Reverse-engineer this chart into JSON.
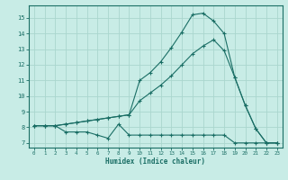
{
  "xlabel": "Humidex (Indice chaleur)",
  "xlim": [
    -0.5,
    23.5
  ],
  "ylim": [
    6.7,
    15.8
  ],
  "yticks": [
    7,
    8,
    9,
    10,
    11,
    12,
    13,
    14,
    15
  ],
  "xticks": [
    0,
    1,
    2,
    3,
    4,
    5,
    6,
    7,
    8,
    9,
    10,
    11,
    12,
    13,
    14,
    15,
    16,
    17,
    18,
    19,
    20,
    21,
    22,
    23
  ],
  "bg_color": "#c8ece6",
  "grid_color": "#aad6ce",
  "line_color": "#1a6e65",
  "line1_x": [
    0,
    1,
    2,
    3,
    4,
    5,
    6,
    7,
    8,
    9,
    10,
    11,
    12,
    13,
    14,
    15,
    16,
    17,
    18,
    19,
    20,
    21,
    22,
    23
  ],
  "line1_y": [
    8.1,
    8.1,
    8.1,
    7.7,
    7.7,
    7.7,
    7.5,
    7.3,
    8.2,
    7.5,
    7.5,
    7.5,
    7.5,
    7.5,
    7.5,
    7.5,
    7.5,
    7.5,
    7.5,
    7.0,
    7.0,
    7.0,
    7.0,
    7.0
  ],
  "line2_x": [
    0,
    1,
    2,
    3,
    4,
    5,
    6,
    7,
    8,
    9,
    10,
    11,
    12,
    13,
    14,
    15,
    16,
    17,
    18,
    19,
    20,
    21,
    22,
    23
  ],
  "line2_y": [
    8.1,
    8.1,
    8.1,
    8.2,
    8.3,
    8.4,
    8.5,
    8.6,
    8.7,
    8.8,
    9.7,
    10.2,
    10.7,
    11.3,
    12.0,
    12.7,
    13.2,
    13.6,
    12.9,
    11.2,
    9.4,
    7.9,
    7.0,
    7.0
  ],
  "line3_x": [
    0,
    1,
    2,
    3,
    4,
    5,
    6,
    7,
    8,
    9,
    10,
    11,
    12,
    13,
    14,
    15,
    16,
    17,
    18,
    19,
    20,
    21,
    22,
    23
  ],
  "line3_y": [
    8.1,
    8.1,
    8.1,
    8.2,
    8.3,
    8.4,
    8.5,
    8.6,
    8.7,
    8.8,
    11.0,
    11.5,
    12.2,
    13.1,
    14.1,
    15.2,
    15.3,
    14.8,
    14.0,
    11.2,
    9.4,
    7.9,
    7.0,
    7.0
  ]
}
